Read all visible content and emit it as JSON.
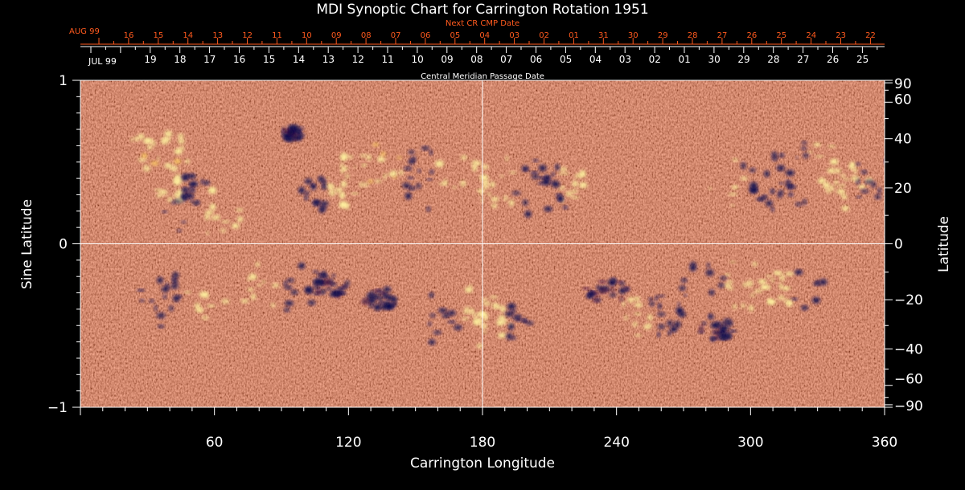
{
  "chart_data": {
    "type": "heatmap",
    "title": "MDI Synoptic Chart for Carrington Rotation 1951",
    "xlabel": "Carrington Longitude",
    "ylabel_left": "Sine Latitude",
    "ylabel_right": "Latitude",
    "xlim": [
      0,
      360
    ],
    "ylim": [
      -1,
      1
    ],
    "x_ticks": [
      60,
      120,
      180,
      240,
      300,
      360
    ],
    "y_ticks_left": [
      {
        "value": -1,
        "label": "−1"
      },
      {
        "value": 0,
        "label": "0"
      },
      {
        "value": 1,
        "label": "1"
      }
    ],
    "latitude_ticks": [
      {
        "deg": 90,
        "label": "90"
      },
      {
        "deg": 60,
        "label": "60"
      },
      {
        "deg": 40,
        "label": "40"
      },
      {
        "deg": 20,
        "label": "20"
      },
      {
        "deg": 0,
        "label": "0"
      },
      {
        "deg": -20,
        "label": "−20"
      },
      {
        "deg": -40,
        "label": "−40"
      },
      {
        "deg": -60,
        "label": "−60"
      },
      {
        "deg": -90,
        "label": "−90"
      }
    ],
    "grid_lines": {
      "x": [
        180
      ],
      "y": [
        0
      ]
    },
    "cmp_axis": {
      "label": "Central Meridian Passage Date",
      "month_label": "JUL 99",
      "dates": [
        "19",
        "18",
        "17",
        "16",
        "15",
        "14",
        "13",
        "12",
        "11",
        "10",
        "09",
        "08",
        "07",
        "06",
        "05",
        "04",
        "03",
        "02",
        "01",
        "30",
        "29",
        "28",
        "27",
        "26",
        "25"
      ]
    },
    "next_cr_axis": {
      "label": "Next CR CMP Date",
      "month_label": "AUG 99",
      "dates": [
        "16",
        "15",
        "14",
        "13",
        "12",
        "11",
        "10",
        "09",
        "08",
        "07",
        "06",
        "05",
        "04",
        "03",
        "02",
        "01",
        "31",
        "30",
        "29",
        "28",
        "27",
        "26",
        "25",
        "24",
        "23",
        "22"
      ]
    },
    "colormap": {
      "negative": "#0a0a50",
      "background": "#ee4a10",
      "positive": "#fff4a0"
    },
    "regions": [
      {
        "lon": 35,
        "sinlat": 0.57,
        "polarity": "positive",
        "extent": 12
      },
      {
        "lon": 45,
        "sinlat": 0.33,
        "polarity": "mixed",
        "extent": 10
      },
      {
        "lon": 55,
        "sinlat": 0.2,
        "polarity": "mixed",
        "extent": 14
      },
      {
        "lon": 95,
        "sinlat": 0.68,
        "polarity": "negative",
        "extent": 4
      },
      {
        "lon": 110,
        "sinlat": 0.3,
        "polarity": "mixed",
        "extent": 10
      },
      {
        "lon": 130,
        "sinlat": 0.48,
        "polarity": "positive",
        "extent": 12
      },
      {
        "lon": 160,
        "sinlat": 0.4,
        "polarity": "mixed",
        "extent": 18
      },
      {
        "lon": 195,
        "sinlat": 0.32,
        "polarity": "mixed",
        "extent": 20
      },
      {
        "lon": 215,
        "sinlat": 0.37,
        "polarity": "mixed",
        "extent": 10
      },
      {
        "lon": 298,
        "sinlat": 0.4,
        "polarity": "mixed",
        "extent": 18
      },
      {
        "lon": 325,
        "sinlat": 0.38,
        "polarity": "mixed",
        "extent": 24
      },
      {
        "lon": 348,
        "sinlat": 0.42,
        "polarity": "mixed",
        "extent": 14
      },
      {
        "lon": 45,
        "sinlat": -0.35,
        "polarity": "mixed",
        "extent": 16
      },
      {
        "lon": 90,
        "sinlat": -0.26,
        "polarity": "mixed",
        "extent": 16
      },
      {
        "lon": 110,
        "sinlat": -0.25,
        "polarity": "negative",
        "extent": 8
      },
      {
        "lon": 135,
        "sinlat": -0.34,
        "polarity": "negative",
        "extent": 6
      },
      {
        "lon": 170,
        "sinlat": -0.45,
        "polarity": "mixed",
        "extent": 18
      },
      {
        "lon": 190,
        "sinlat": -0.48,
        "polarity": "mixed",
        "extent": 10
      },
      {
        "lon": 235,
        "sinlat": -0.3,
        "polarity": "negative",
        "extent": 8
      },
      {
        "lon": 255,
        "sinlat": -0.44,
        "polarity": "mixed",
        "extent": 12
      },
      {
        "lon": 288,
        "sinlat": -0.26,
        "polarity": "mixed",
        "extent": 18
      },
      {
        "lon": 318,
        "sinlat": -0.28,
        "polarity": "mixed",
        "extent": 14
      },
      {
        "lon": 285,
        "sinlat": -0.52,
        "polarity": "negative",
        "extent": 6
      }
    ]
  }
}
